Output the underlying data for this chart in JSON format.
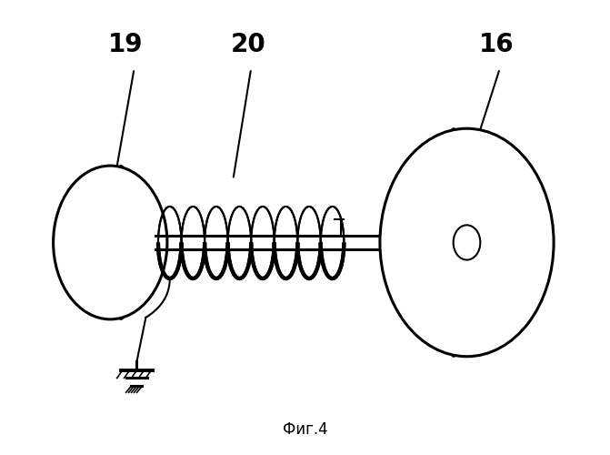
{
  "caption": "Фиг.4",
  "label_19": "19",
  "label_20": "20",
  "label_16": "16",
  "bg_color": "#ffffff",
  "line_color": "#000000",
  "figsize": [
    6.71,
    5.0
  ],
  "dpi": 100
}
